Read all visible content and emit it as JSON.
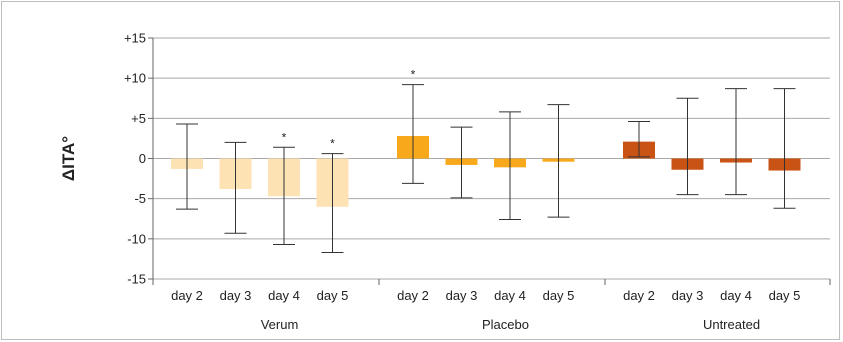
{
  "chart_data": {
    "type": "bar",
    "ylabel": "ΔITA°",
    "ylim": [
      -15,
      15
    ],
    "yticks": [
      15,
      10,
      5,
      0,
      -5,
      -10,
      -15
    ],
    "ytick_labels": [
      "+15",
      "+10",
      "+5",
      "0",
      "-5",
      "-10",
      "-15"
    ],
    "grid": true,
    "groups": [
      {
        "name": "Verum",
        "color": "#fde2b4",
        "categories": [
          "day 2",
          "day 3",
          "day 4",
          "day 5"
        ],
        "values": [
          -1.3,
          -3.8,
          -4.7,
          -6.0
        ],
        "err_high": [
          4.3,
          2.0,
          1.4,
          0.6
        ],
        "err_low": [
          -6.3,
          -9.3,
          -10.7,
          -11.7
        ],
        "annotations": [
          "",
          "",
          "*",
          "*"
        ]
      },
      {
        "name": "Placebo",
        "color": "#f7a81b",
        "categories": [
          "day 2",
          "day 3",
          "day 4",
          "day 5"
        ],
        "values": [
          2.8,
          -0.8,
          -1.1,
          -0.4
        ],
        "err_high": [
          9.2,
          3.9,
          5.8,
          6.7
        ],
        "err_low": [
          -3.1,
          -4.9,
          -7.6,
          -7.3
        ],
        "annotations": [
          "*",
          "",
          "",
          ""
        ]
      },
      {
        "name": "Untreated",
        "color": "#c85314",
        "categories": [
          "day 2",
          "day 3",
          "day 4",
          "day 5"
        ],
        "values": [
          2.1,
          -1.4,
          -0.5,
          -1.5
        ],
        "err_high": [
          4.6,
          7.5,
          8.7,
          8.7
        ],
        "err_low": [
          0.2,
          -4.5,
          -4.5,
          -6.2
        ],
        "annotations": [
          "",
          "",
          "",
          ""
        ]
      }
    ]
  }
}
